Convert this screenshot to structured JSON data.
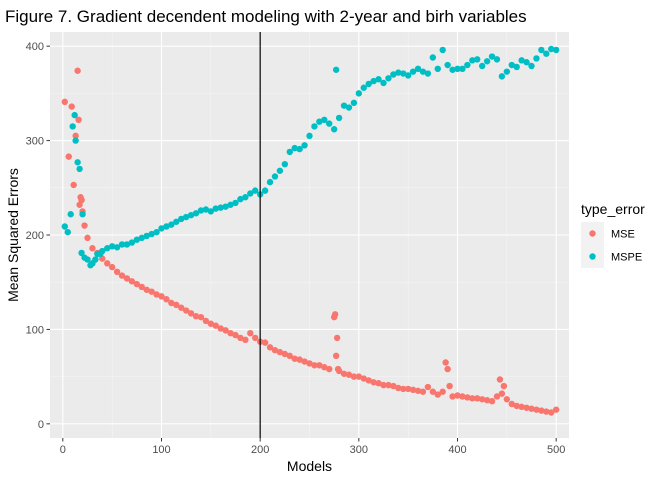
{
  "chart_data": {
    "type": "scatter",
    "title": "Figure 7. Gradient decendent modeling with 2-year and birh variables",
    "xlabel": "Models",
    "ylabel": "Mean Squared Errors",
    "xlim": [
      -13,
      513
    ],
    "ylim": [
      -15,
      415
    ],
    "x_ticks": [
      0,
      100,
      200,
      300,
      400,
      500
    ],
    "y_ticks": [
      0,
      100,
      200,
      300,
      400
    ],
    "grid": true,
    "vline": 200,
    "legend": {
      "title": "type_error",
      "placement": "right"
    },
    "series": [
      {
        "name": "MSE",
        "color": "#F8766D",
        "x": [
          2,
          6,
          9,
          11,
          13,
          15,
          16,
          17,
          18,
          19,
          20,
          22,
          25,
          30,
          35,
          40,
          45,
          50,
          55,
          60,
          65,
          70,
          75,
          80,
          85,
          90,
          95,
          100,
          105,
          110,
          115,
          120,
          125,
          130,
          135,
          140,
          145,
          150,
          155,
          160,
          165,
          170,
          175,
          180,
          185,
          190,
          195,
          200,
          205,
          210,
          215,
          220,
          225,
          230,
          235,
          240,
          245,
          250,
          255,
          260,
          265,
          270,
          275,
          276,
          277,
          278,
          279,
          280,
          285,
          290,
          295,
          300,
          305,
          310,
          315,
          320,
          325,
          330,
          335,
          340,
          345,
          350,
          355,
          360,
          365,
          370,
          375,
          380,
          385,
          388,
          390,
          392,
          395,
          400,
          405,
          410,
          415,
          420,
          425,
          430,
          435,
          440,
          443,
          445,
          447,
          450,
          455,
          460,
          465,
          470,
          475,
          480,
          485,
          490,
          495,
          500
        ],
        "y": [
          341,
          283,
          336,
          253,
          305,
          374,
          322,
          232,
          240,
          237,
          225,
          210,
          197,
          186,
          181,
          175,
          170,
          166,
          161,
          157,
          154,
          151,
          148,
          145,
          142,
          140,
          137,
          135,
          132,
          128,
          126,
          123,
          120,
          117,
          114,
          113,
          109,
          106,
          104,
          101,
          99,
          96,
          94,
          91,
          89,
          96,
          91,
          87,
          86,
          81,
          78,
          76,
          74,
          72,
          69,
          68,
          66,
          64,
          62,
          62,
          60,
          58,
          113,
          116,
          72,
          91,
          58,
          56,
          53,
          52,
          50,
          50,
          48,
          46,
          44,
          43,
          41,
          41,
          40,
          38,
          37,
          37,
          36,
          35,
          34,
          39,
          34,
          31,
          34,
          65,
          58,
          40,
          29,
          30,
          29,
          28,
          27,
          27,
          26,
          25,
          24,
          29,
          47,
          32,
          40,
          26,
          21,
          19,
          18,
          17,
          16,
          15,
          14,
          13,
          12,
          15
        ]
      },
      {
        "name": "MSPE",
        "color": "#00BFC4",
        "x": [
          2,
          5,
          8,
          10,
          12,
          13,
          15,
          17,
          19,
          20,
          22,
          25,
          28,
          30,
          33,
          35,
          38,
          40,
          45,
          50,
          55,
          60,
          65,
          70,
          75,
          80,
          85,
          90,
          95,
          100,
          105,
          110,
          115,
          120,
          125,
          130,
          135,
          140,
          145,
          150,
          155,
          160,
          165,
          170,
          175,
          180,
          185,
          190,
          195,
          200,
          205,
          210,
          215,
          220,
          225,
          230,
          235,
          240,
          245,
          250,
          255,
          260,
          265,
          270,
          275,
          277,
          280,
          285,
          290,
          295,
          300,
          305,
          310,
          315,
          320,
          325,
          330,
          335,
          340,
          345,
          350,
          355,
          360,
          365,
          370,
          375,
          380,
          385,
          390,
          395,
          400,
          405,
          410,
          415,
          420,
          425,
          430,
          435,
          440,
          445,
          450,
          455,
          460,
          465,
          470,
          475,
          480,
          485,
          490,
          495,
          500
        ],
        "y": [
          209,
          203,
          222,
          315,
          327,
          300,
          277,
          270,
          181,
          222,
          176,
          174,
          168,
          170,
          174,
          180,
          180,
          183,
          186,
          188,
          187,
          190,
          190,
          192,
          195,
          197,
          199,
          201,
          203,
          207,
          209,
          211,
          214,
          217,
          219,
          221,
          223,
          226,
          227,
          225,
          228,
          229,
          230,
          232,
          234,
          238,
          240,
          244,
          247,
          243,
          247,
          256,
          262,
          268,
          275,
          288,
          292,
          291,
          295,
          305,
          315,
          320,
          322,
          318,
          312,
          375,
          324,
          337,
          335,
          340,
          350,
          356,
          360,
          363,
          365,
          361,
          366,
          370,
          372,
          371,
          369,
          373,
          376,
          373,
          371,
          388,
          376,
          396,
          380,
          375,
          376,
          376,
          380,
          385,
          386,
          379,
          384,
          389,
          386,
          368,
          373,
          380,
          378,
          385,
          383,
          379,
          387,
          396,
          392,
          397,
          396
        ]
      }
    ]
  }
}
